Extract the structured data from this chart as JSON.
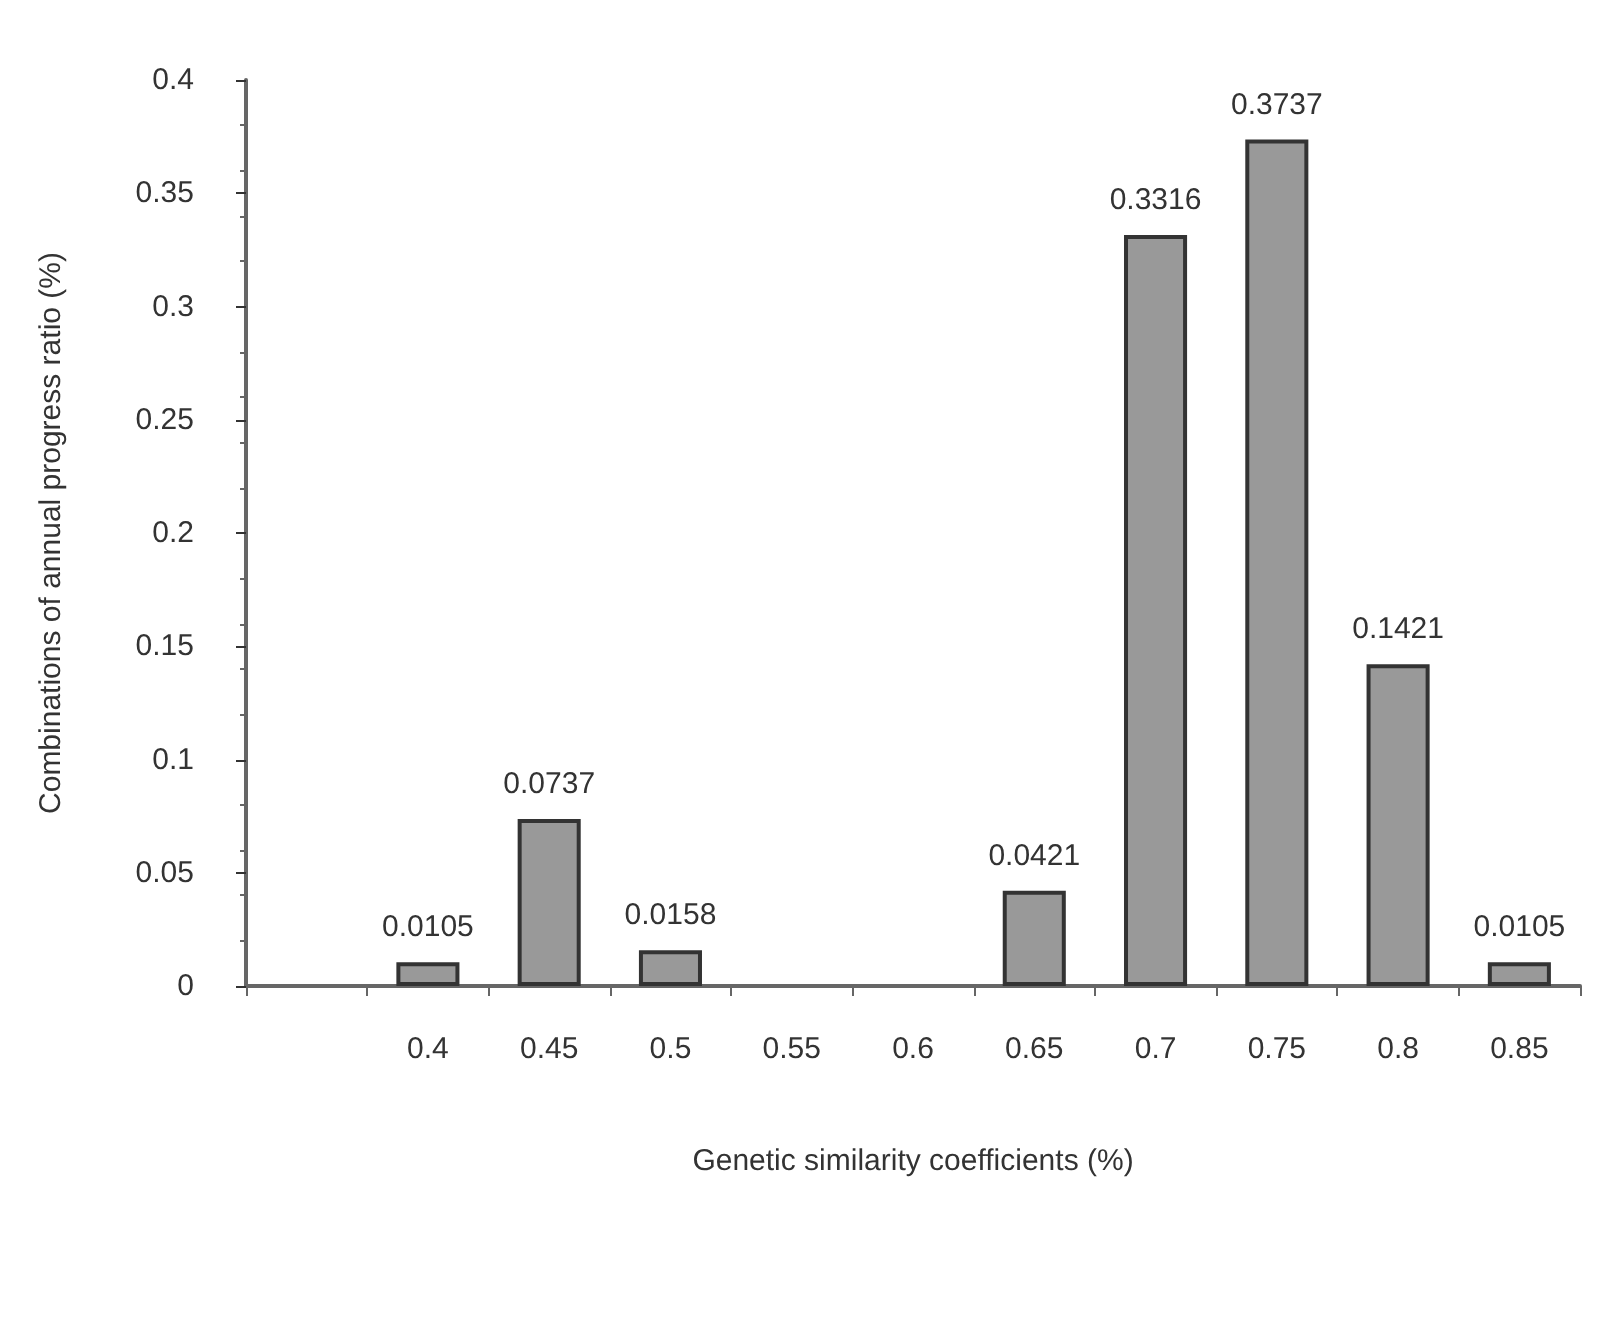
{
  "chart_data": {
    "type": "bar",
    "xlabel": "Genetic similarity coefficients (%)",
    "ylabel": "Combinations of annual progress ratio (%)",
    "categories": [
      null,
      "0.4",
      "0.45",
      "0.5",
      "0.55",
      "0.6",
      "0.65",
      "0.7",
      "0.75",
      "0.8",
      "0.85"
    ],
    "values": [
      null,
      0.0105,
      0.0737,
      0.0158,
      null,
      null,
      0.0421,
      0.3316,
      0.3737,
      0.1421,
      0.0105
    ],
    "color": "#999999",
    "ylim": [
      0,
      0.4
    ],
    "yticks": [
      0,
      0.05,
      0.1,
      0.15,
      0.2,
      0.25,
      0.3,
      0.35,
      0.4
    ],
    "data_labels": true
  }
}
